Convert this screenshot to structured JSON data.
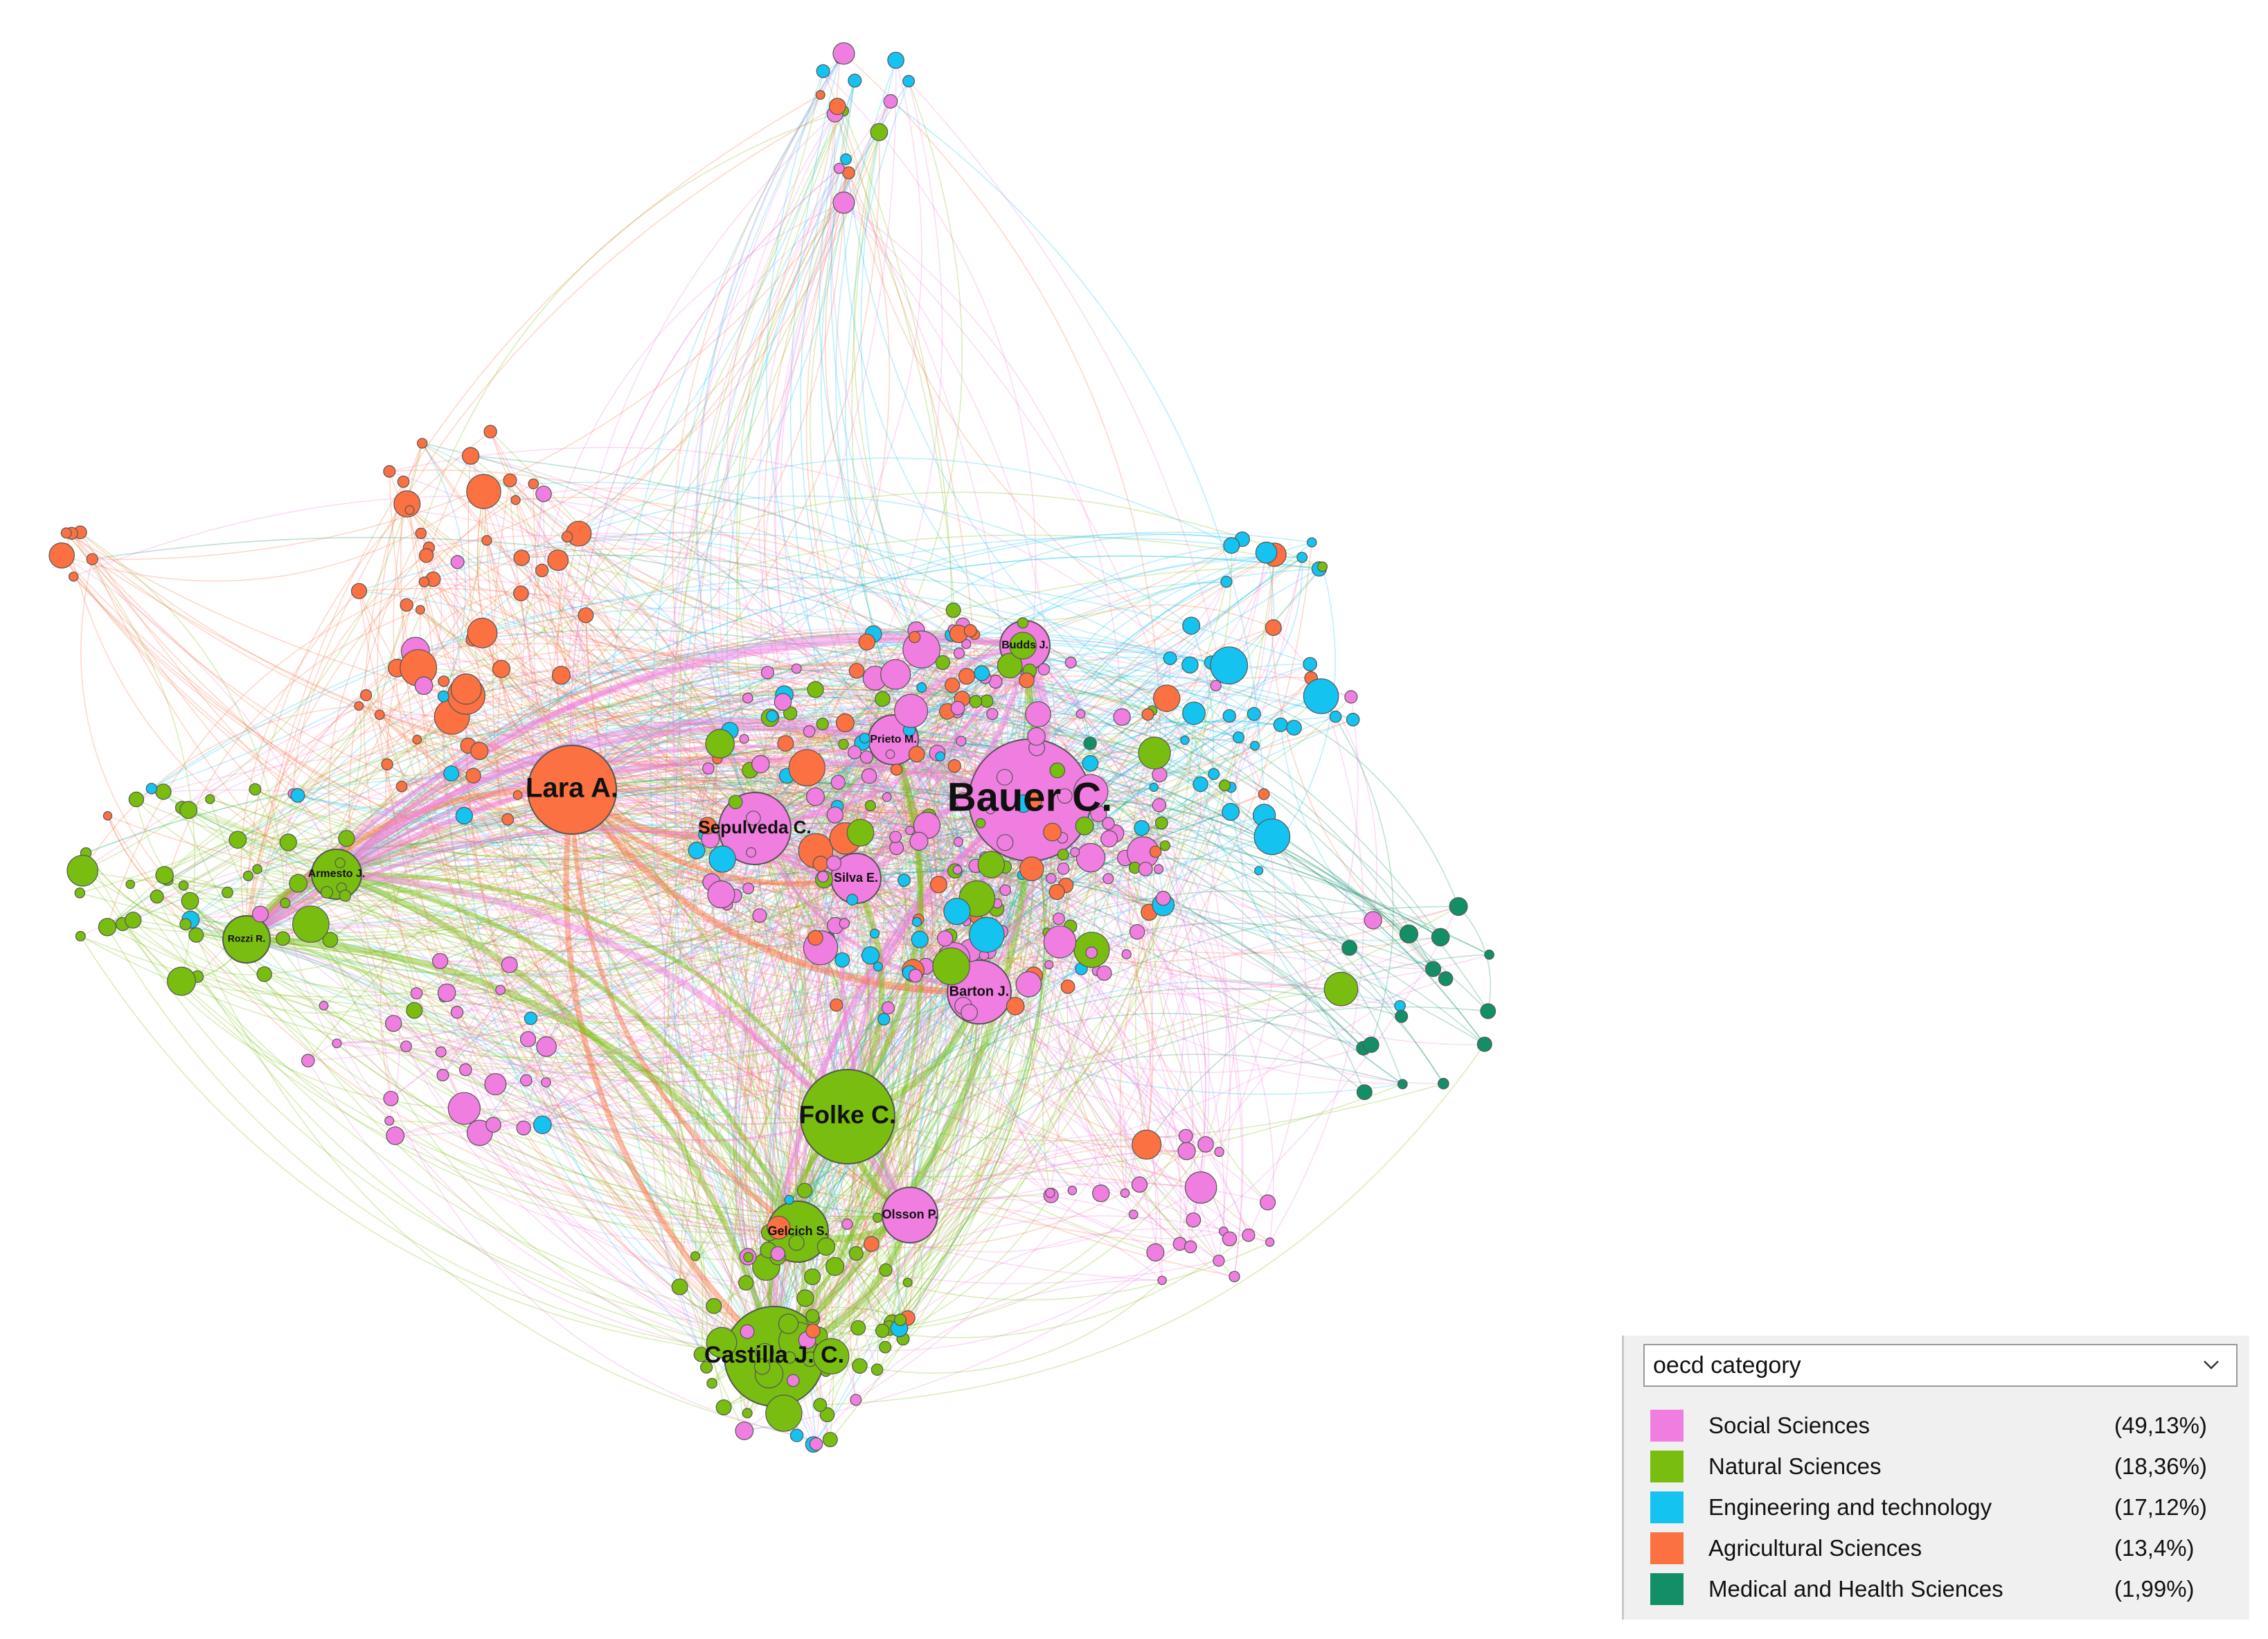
{
  "legend": {
    "dropdown_value": "oecd category",
    "chevron_icon": "chevron-down-icon",
    "items": [
      {
        "label": "Social Sciences",
        "percent": "(49,13%)",
        "color": "#f07ee0"
      },
      {
        "label": "Natural Sciences",
        "percent": "(18,36%)",
        "color": "#79bd10"
      },
      {
        "label": "Engineering and technology",
        "percent": "(17,12%)",
        "color": "#14c3ef"
      },
      {
        "label": "Agricultural Sciences",
        "percent": "(13,4%)",
        "color": "#fb7142"
      },
      {
        "label": "Medical and Health Sciences",
        "percent": "(1,99%)",
        "color": "#138f67"
      }
    ]
  },
  "network": {
    "labeled_nodes": [
      {
        "label": "Bauer C.",
        "category": 0
      },
      {
        "label": "Lara A.",
        "category": 3
      },
      {
        "label": "Folke C.",
        "category": 1
      },
      {
        "label": "Castilla J. C.",
        "category": 1
      },
      {
        "label": "Sepulveda C.",
        "category": 0
      },
      {
        "label": "Silva E.",
        "category": 0
      },
      {
        "label": "Barton J.",
        "category": 0
      },
      {
        "label": "Budds J.",
        "category": 0
      },
      {
        "label": "Prieto M.",
        "category": 0
      },
      {
        "label": "Gelcich S.",
        "category": 1
      },
      {
        "label": "Olsson P.",
        "category": 0
      },
      {
        "label": "Armesto J.",
        "category": 1
      },
      {
        "label": "Rozzi R.",
        "category": 1
      }
    ]
  }
}
